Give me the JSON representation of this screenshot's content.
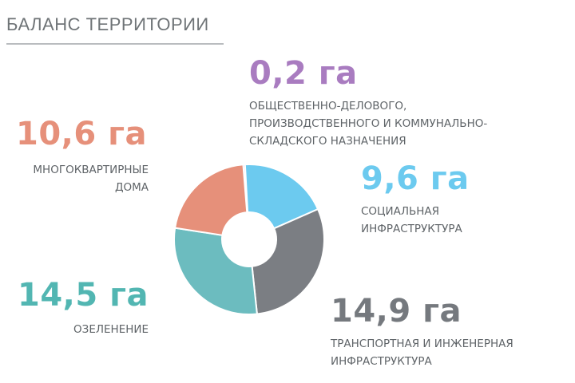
{
  "title": "БАЛАНС ТЕРРИТОРИИ",
  "chart_data": {
    "type": "pie",
    "title": "БАЛАНС ТЕРРИТОРИИ",
    "unit": "га",
    "slices": [
      {
        "value_label": "0,2 га",
        "value": 0.2,
        "label_lines": [
          "ОБЩЕСТВЕННО-ДЕЛОВОГО,",
          "ПРОИЗВОДСТВЕННОГО И КОММУНАЛЬНО-",
          "СКЛАДСКОГО НАЗНАЧЕНИЯ"
        ],
        "color": "#a97cc0"
      },
      {
        "value_label": "9,6 га",
        "value": 9.6,
        "label_lines": [
          "СОЦИАЛЬНАЯ",
          "ИНФРАСТРУКТУРА"
        ],
        "color": "#6ccaef"
      },
      {
        "value_label": "14,9 га",
        "value": 14.9,
        "label_lines": [
          "ТРАНСПОРТНАЯ И ИНЖЕНЕРНАЯ",
          "ИНФРАСТРУКТУРА"
        ],
        "color": "#7b7e83"
      },
      {
        "value_label": "14,5 га",
        "value": 14.5,
        "label_lines": [
          "ОЗЕЛЕНЕНИЕ"
        ],
        "color": "#6cbcbf"
      },
      {
        "value_label": "10,6 га",
        "value": 10.6,
        "label_lines": [
          "МНОГОКВАРТИРНЫЕ",
          "ДОМА"
        ],
        "color": "#e6907a"
      }
    ]
  }
}
